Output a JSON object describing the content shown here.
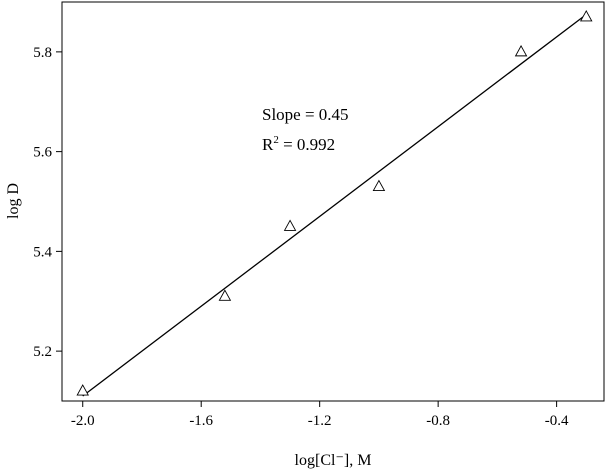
{
  "chart_data": {
    "type": "scatter",
    "title": "",
    "xlabel": "log[Cl⁻], M",
    "ylabel": "log D",
    "xlim": [
      -2.07,
      -0.24
    ],
    "ylim": [
      5.1,
      5.9
    ],
    "x_ticks": [
      -2.0,
      -1.6,
      -1.2,
      -0.8,
      -0.4
    ],
    "x_tick_labels": [
      "-2.0",
      "-1.6",
      "-1.2",
      "-0.8",
      "-0.4"
    ],
    "y_ticks": [
      5.2,
      5.4,
      5.6,
      5.8
    ],
    "y_tick_labels": [
      "5.2",
      "5.4",
      "5.6",
      "5.8"
    ],
    "grid": false,
    "marker": "open-triangle",
    "series": [
      {
        "x": [
          -2.0,
          -1.52,
          -1.3,
          -1.0,
          -0.52,
          -0.3
        ],
        "y": [
          5.12,
          5.31,
          5.45,
          5.53,
          5.8,
          5.87
        ]
      }
    ],
    "fit_line": {
      "x": [
        -2.0,
        -0.3
      ],
      "y": [
        5.11,
        5.875
      ]
    },
    "annotations": {
      "slope": "Slope = 0.45",
      "r2_prefix": "R",
      "r2_exp": "2",
      "r2_value": " = 0.992"
    }
  }
}
